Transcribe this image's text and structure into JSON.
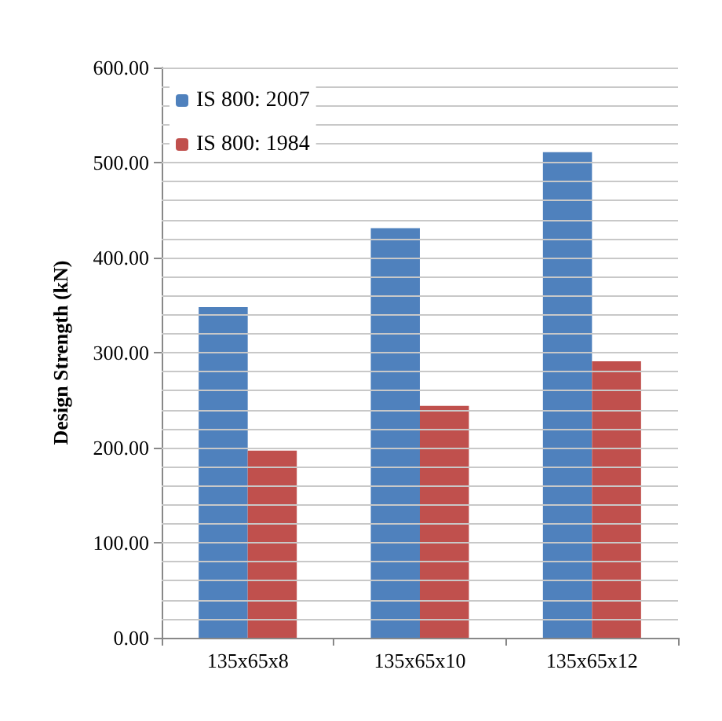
{
  "chart_data": {
    "type": "bar",
    "ylabel": "Design Strength (kN)",
    "categories": [
      "135x65x8",
      "135x65x10",
      "135x65x12"
    ],
    "series": [
      {
        "name": "IS 800: 2007",
        "color": "#4f81bd",
        "values": [
          348,
          431,
          511
        ]
      },
      {
        "name": "IS 800: 1984",
        "color": "#c0504d",
        "values": [
          197,
          244,
          291
        ]
      }
    ],
    "ylim": [
      0,
      600
    ],
    "yticks": [
      {
        "value": 0,
        "label": "0.00"
      },
      {
        "value": 20,
        "label": null
      },
      {
        "value": 40,
        "label": null
      },
      {
        "value": 60,
        "label": null
      },
      {
        "value": 80,
        "label": null
      },
      {
        "value": 100,
        "label": "100.00"
      },
      {
        "value": 120,
        "label": null
      },
      {
        "value": 140,
        "label": null
      },
      {
        "value": 160,
        "label": null
      },
      {
        "value": 180,
        "label": null
      },
      {
        "value": 200,
        "label": "200.00"
      },
      {
        "value": 220,
        "label": null
      },
      {
        "value": 240,
        "label": null
      },
      {
        "value": 260,
        "label": null
      },
      {
        "value": 280,
        "label": null
      },
      {
        "value": 300,
        "label": "300.00"
      },
      {
        "value": 320,
        "label": null
      },
      {
        "value": 340,
        "label": null
      },
      {
        "value": 360,
        "label": null
      },
      {
        "value": 380,
        "label": null
      },
      {
        "value": 400,
        "label": "400.00"
      },
      {
        "value": 420,
        "label": null
      },
      {
        "value": 440,
        "label": null
      },
      {
        "value": 460,
        "label": null
      },
      {
        "value": 480,
        "label": null
      },
      {
        "value": 500,
        "label": "500.00"
      },
      {
        "value": 520,
        "label": null
      },
      {
        "value": 540,
        "label": null
      },
      {
        "value": 560,
        "label": null
      },
      {
        "value": 580,
        "label": null
      },
      {
        "value": 600,
        "label": "600.00"
      }
    ],
    "grid": "y",
    "legend": "top left"
  }
}
